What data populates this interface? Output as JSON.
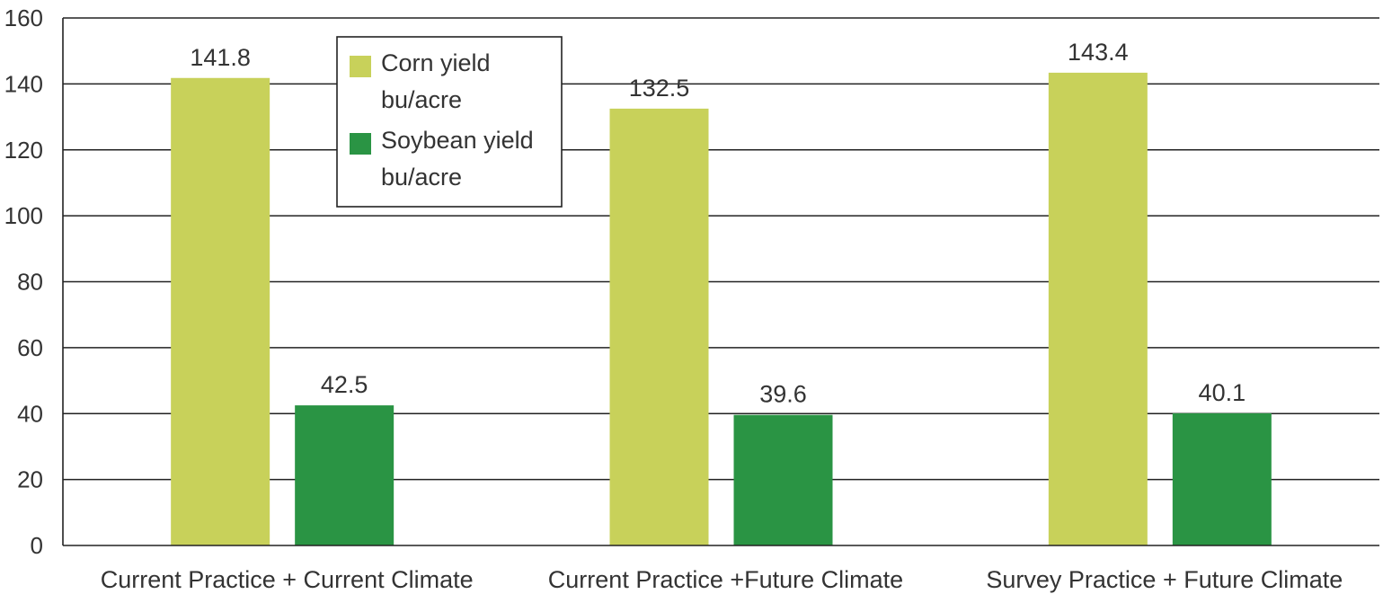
{
  "chart_data": {
    "type": "bar",
    "title": "",
    "xlabel": "",
    "ylabel": "",
    "ylim": [
      0,
      160
    ],
    "yticks": [
      0,
      20,
      40,
      60,
      80,
      100,
      120,
      140,
      160
    ],
    "grid": true,
    "legend_position": "top-left",
    "categories": [
      "Current Practice + Current Climate",
      "Current Practice +Future Climate",
      "Survey Practice + Future Climate"
    ],
    "series": [
      {
        "name": "Corn yield bu/acre",
        "legend_lines": [
          "Corn yield",
          "bu/acre"
        ],
        "color": "#c8d15a",
        "values": [
          141.8,
          132.5,
          143.4
        ],
        "labels": [
          "141.8",
          "132.5",
          "143.4"
        ]
      },
      {
        "name": "Soybean yield bu/acre",
        "legend_lines": [
          "Soybean yield",
          "bu/acre"
        ],
        "color": "#2a9444",
        "values": [
          42.5,
          39.6,
          40.1
        ],
        "labels": [
          "42.5",
          "39.6",
          "40.1"
        ]
      }
    ]
  }
}
